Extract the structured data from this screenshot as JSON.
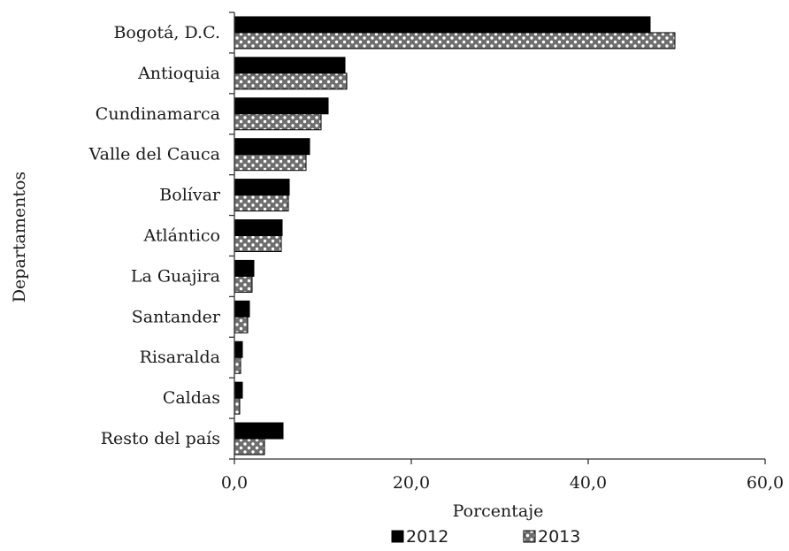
{
  "chart_data": {
    "type": "bar",
    "orientation": "horizontal",
    "categories": [
      "Bogotá, D.C.",
      "Antioquia",
      "Cundinamarca",
      "Valle del Cauca",
      "Bolívar",
      "Atlántico",
      "La Guajira",
      "Santander",
      "Risaralda",
      "Caldas",
      "Resto del país"
    ],
    "series": [
      {
        "name": "2012",
        "color": "#000000",
        "pattern": "solid",
        "values": [
          47.0,
          12.5,
          10.6,
          8.5,
          6.2,
          5.4,
          2.2,
          1.7,
          0.9,
          0.9,
          5.5
        ]
      },
      {
        "name": "2013",
        "color": "#777777",
        "pattern": "dotted",
        "values": [
          49.8,
          12.7,
          9.8,
          8.1,
          6.1,
          5.3,
          2.0,
          1.5,
          0.7,
          0.6,
          3.4
        ]
      }
    ],
    "xlabel": "Porcentaje",
    "ylabel": "Departamentos",
    "xlim": [
      0,
      60
    ],
    "xticks": [
      "0,0",
      "20,0",
      "40,0",
      "60,0"
    ],
    "xtick_values": [
      0,
      20,
      40,
      60
    ],
    "grid": false,
    "legend_position": "bottom"
  }
}
